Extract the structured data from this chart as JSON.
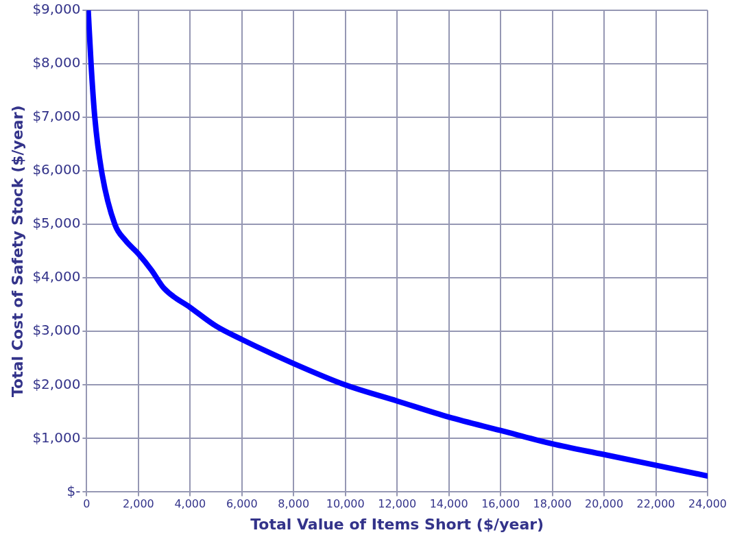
{
  "chart_data": {
    "type": "line",
    "xlabel": "Total Value of Items Short ($/year)",
    "ylabel": "Total Cost of Safety Stock ($/year)",
    "x": [
      60,
      170,
      315,
      575,
      1090,
      1500,
      2000,
      2500,
      3000,
      4000,
      5000,
      6000,
      8000,
      10000,
      12000,
      14000,
      16000,
      18000,
      20000,
      22000,
      24000
    ],
    "series": [
      {
        "color": "#0000ff",
        "values": [
          9000,
          8000,
          7000,
          6000,
          5000,
          4700,
          4450,
          4150,
          3800,
          3450,
          3100,
          2850,
          2400,
          2000,
          1700,
          1400,
          1150,
          900,
          700,
          500,
          300
        ]
      }
    ],
    "xlim": [
      0,
      24000
    ],
    "xticks": [
      {
        "value": 0,
        "label": "0"
      },
      {
        "value": 2000,
        "label": "2,000"
      },
      {
        "value": 4000,
        "label": "4,000"
      },
      {
        "value": 6000,
        "label": "6,000"
      },
      {
        "value": 8000,
        "label": "8,000"
      },
      {
        "value": 10000,
        "label": "10,000"
      },
      {
        "value": 12000,
        "label": "12,000"
      },
      {
        "value": 14000,
        "label": "14,000"
      },
      {
        "value": 16000,
        "label": "16,000"
      },
      {
        "value": 18000,
        "label": "18,000"
      },
      {
        "value": 20000,
        "label": "20,000"
      },
      {
        "value": 22000,
        "label": "22,000"
      },
      {
        "value": 24000,
        "label": "24,000"
      }
    ],
    "ylim": [
      0,
      9000
    ],
    "yticks": [
      {
        "value": 0,
        "label": "$-"
      },
      {
        "value": 1000,
        "label": "$1,000"
      },
      {
        "value": 2000,
        "label": "$2,000"
      },
      {
        "value": 3000,
        "label": "$3,000"
      },
      {
        "value": 4000,
        "label": "$4,000"
      },
      {
        "value": 5000,
        "label": "$5,000"
      },
      {
        "value": 6000,
        "label": "$6,000"
      },
      {
        "value": 7000,
        "label": "$7,000"
      },
      {
        "value": 8000,
        "label": "$8,000"
      },
      {
        "value": 9000,
        "label": "$9,000"
      }
    ],
    "grid": true,
    "legend": false,
    "marker": "none",
    "line_style": "solid"
  }
}
